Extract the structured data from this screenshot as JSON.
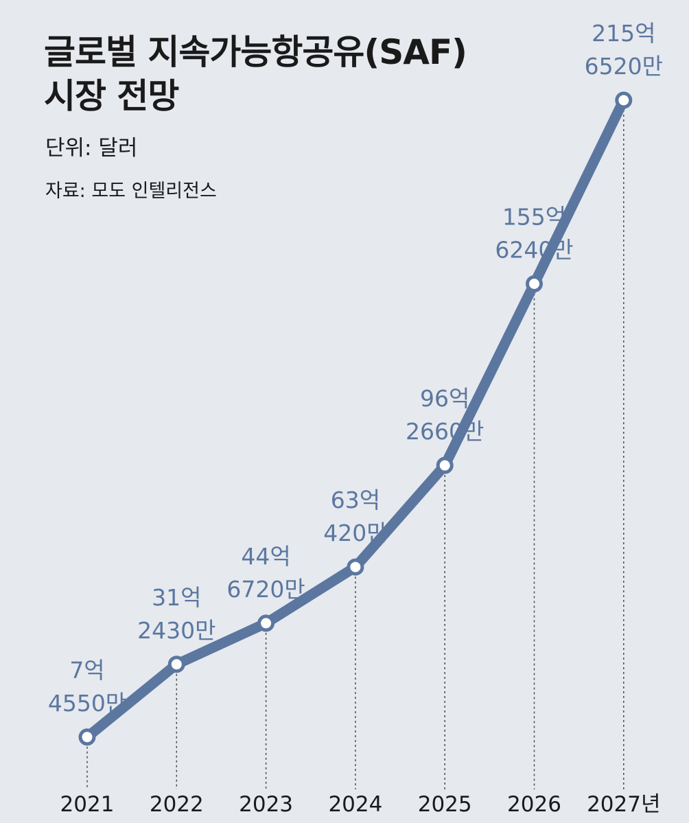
{
  "header": {
    "title_line1": "글로벌 지속가능항공유(SAF)",
    "title_line2": "시장 전망",
    "unit": "단위: 달러",
    "source": "자료: 모도 인텔리전스"
  },
  "colors": {
    "line": "#5b77a0",
    "label": "#5b77a0",
    "background": "#e6e9ee",
    "axis_text": "#1a1a1a"
  },
  "chart_data": {
    "type": "line",
    "title": "글로벌 지속가능항공유(SAF) 시장 전망",
    "unit": "단위: 달러",
    "source": "자료: 모도 인텔리전스",
    "categories": [
      "2021",
      "2022",
      "2023",
      "2024",
      "2025",
      "2026",
      "2027년"
    ],
    "values": [
      745500000,
      3124300000,
      4467200000,
      6304200000,
      9626600000,
      15562400000,
      21565200000
    ],
    "data_labels": [
      [
        "7억",
        "4550만"
      ],
      [
        "31억",
        "2430만"
      ],
      [
        "44억",
        "6720만"
      ],
      [
        "63억",
        "420만"
      ],
      [
        "96억",
        "2660만"
      ],
      [
        "155억",
        "6240만"
      ],
      [
        "215억",
        "6520만"
      ]
    ],
    "ylim": [
      0,
      21565200000
    ],
    "grid": false,
    "drop_lines": true
  }
}
